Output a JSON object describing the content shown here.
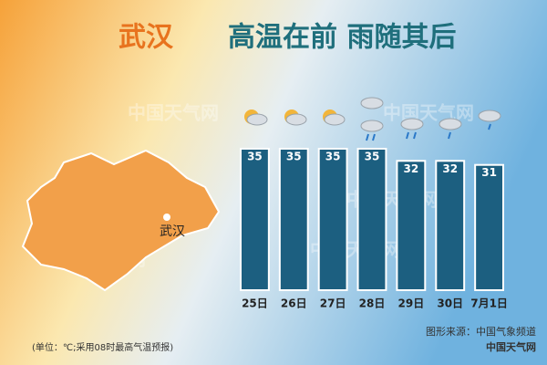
{
  "chart_data": {
    "type": "bar",
    "title": "高温在前 雨随其后",
    "city": "武汉",
    "map_label": "武汉",
    "categories": [
      "25日",
      "26日",
      "27日",
      "28日",
      "29日",
      "30日",
      "7月1日"
    ],
    "values": [
      35,
      35,
      35,
      35,
      32,
      32,
      31
    ],
    "color": "#1c5f80",
    "ylim": [
      0,
      35
    ],
    "note": "(单位：℃;采用08时最高气温预报)",
    "source": "图形来源：中国气象频道",
    "brand": "中国天气网",
    "watermark": "中国天气网"
  }
}
